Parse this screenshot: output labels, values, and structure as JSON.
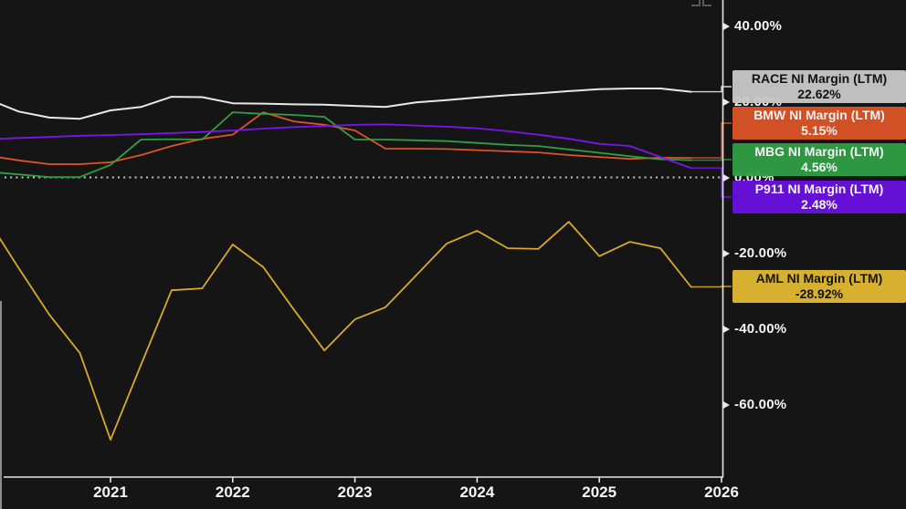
{
  "chart": {
    "y_axis": {
      "labels": [
        "40.00%",
        "20.00%",
        "0.00%",
        "-20.00%",
        "-40.00%",
        "-60.00%"
      ],
      "values": [
        40,
        20,
        0,
        -20,
        -40,
        -60
      ]
    },
    "x_axis": {
      "labels": [
        "2021",
        "2022",
        "2023",
        "2024",
        "2025",
        "2026"
      ]
    },
    "chart_data": {
      "type": "line",
      "x": [
        "2019-Q4",
        "2020-Q1",
        "2020-Q2",
        "2020-Q3",
        "2020-Q4",
        "2021-Q1",
        "2021-Q2",
        "2021-Q3",
        "2021-Q4",
        "2022-Q1",
        "2022-Q2",
        "2022-Q3",
        "2022-Q4",
        "2023-Q1",
        "2023-Q2",
        "2023-Q3",
        "2023-Q4",
        "2024-Q1",
        "2024-Q2",
        "2024-Q3",
        "2024-Q4",
        "2025-Q1",
        "2025-Q2",
        "2025-Q3"
      ],
      "ylabel_unit": "%",
      "ylim": [
        -75,
        45
      ],
      "zero_line": true,
      "grid": false,
      "legend_position": "right",
      "series": [
        {
          "name": "RACE NI Margin (LTM)",
          "ticker": "RACE",
          "current": "22.62%",
          "line_color": "#e9e9e9",
          "box_color": "#c9c9c9",
          "text_color": "#121212",
          "values": [
            20.6,
            17.4,
            15.8,
            15.5,
            17.7,
            18.6,
            21.3,
            21.2,
            19.6,
            19.5,
            19.3,
            19.2,
            18.9,
            18.6,
            19.8,
            20.4,
            21.1,
            21.7,
            22.2,
            22.8,
            23.3,
            23.5,
            23.5,
            22.62
          ]
        },
        {
          "name": "BMW NI Margin (LTM)",
          "ticker": "BMW",
          "current": "5.15%",
          "line_color": "#dd5426",
          "box_color": "#dd5426",
          "text_color": "#ffffff",
          "values": [
            5.7,
            4.5,
            3.5,
            3.5,
            4.0,
            5.9,
            8.3,
            10.2,
            11.3,
            17.2,
            14.8,
            13.9,
            12.4,
            7.6,
            7.6,
            7.5,
            7.2,
            6.9,
            6.6,
            5.9,
            5.4,
            4.9,
            5.2,
            5.15
          ]
        },
        {
          "name": "MBG NI Margin (LTM)",
          "ticker": "MBG",
          "current": "4.56%",
          "line_color": "#2f9e44",
          "box_color": "#2f9e44",
          "text_color": "#ffffff",
          "values": [
            1.5,
            0.8,
            0.1,
            0.1,
            3.3,
            10.0,
            10.1,
            10.0,
            17.2,
            16.8,
            16.5,
            16.0,
            10.0,
            10.0,
            9.8,
            9.6,
            9.1,
            8.6,
            8.3,
            7.4,
            6.5,
            5.6,
            4.8,
            4.56
          ]
        },
        {
          "name": "P911 NI Margin (LTM)",
          "ticker": "P911",
          "current": "2.48%",
          "line_color": "#7a15f0",
          "box_color": "#6a10e0",
          "text_color": "#ffffff",
          "values": [
            10.1,
            10.4,
            10.7,
            11.0,
            11.2,
            11.4,
            11.7,
            12.0,
            12.4,
            12.9,
            13.3,
            13.6,
            13.9,
            14.0,
            13.7,
            13.4,
            13.0,
            12.2,
            11.3,
            10.2,
            8.9,
            8.3,
            5.4,
            2.48
          ]
        },
        {
          "name": "AML NI Margin (LTM)",
          "ticker": "AML",
          "current": "-28.92%",
          "line_color": "#d9a92a",
          "box_color": "#e2b931",
          "text_color": "#121212",
          "values": [
            -11.4,
            -24.0,
            -36.3,
            -46.4,
            -69.3,
            -49.5,
            -29.8,
            -29.3,
            -17.7,
            -23.7,
            -34.9,
            -45.7,
            -37.5,
            -34.3,
            -25.9,
            -17.5,
            -14.1,
            -18.7,
            -18.9,
            -11.7,
            -20.8,
            -17.0,
            -18.7,
            -28.92
          ]
        }
      ]
    }
  }
}
